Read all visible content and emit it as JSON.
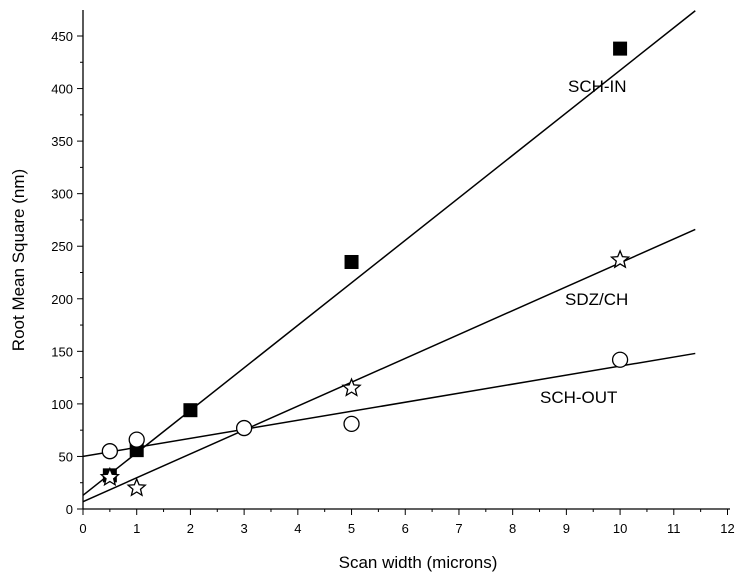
{
  "chart_data": {
    "type": "scatter",
    "title": "",
    "xlabel": "Scan width (microns)",
    "ylabel": "Root Mean Square (nm)",
    "xlim": [
      0,
      12
    ],
    "ylim": [
      0,
      450
    ],
    "x_ticks": [
      "0",
      "1",
      "2",
      "3",
      "4",
      "5",
      "6",
      "7",
      "8",
      "9",
      "10",
      "11",
      "12"
    ],
    "y_ticks": [
      "0",
      "50",
      "100",
      "150",
      "200",
      "250",
      "300",
      "350",
      "400",
      "450"
    ],
    "grid": false,
    "legend": "none",
    "series": [
      {
        "name": "SCH-IN",
        "marker": "filled-square",
        "x": [
          0.5,
          1,
          2,
          5,
          10
        ],
        "y": [
          32,
          56,
          94,
          235,
          438
        ],
        "fit": {
          "x": [
            0,
            11.4
          ],
          "y": [
            13,
            474
          ]
        }
      },
      {
        "name": "SDZ/CH",
        "marker": "open-star",
        "x": [
          0.5,
          1,
          5,
          10
        ],
        "y": [
          30,
          20,
          115,
          237
        ],
        "fit": {
          "x": [
            0,
            11.4
          ],
          "y": [
            7,
            266
          ]
        }
      },
      {
        "name": "SCH-OUT",
        "marker": "open-circle",
        "x": [
          0.5,
          1,
          3,
          5,
          10
        ],
        "y": [
          55,
          66,
          77,
          81,
          142
        ],
        "fit": {
          "x": [
            0,
            11.4
          ],
          "y": [
            50,
            148
          ]
        }
      }
    ]
  }
}
